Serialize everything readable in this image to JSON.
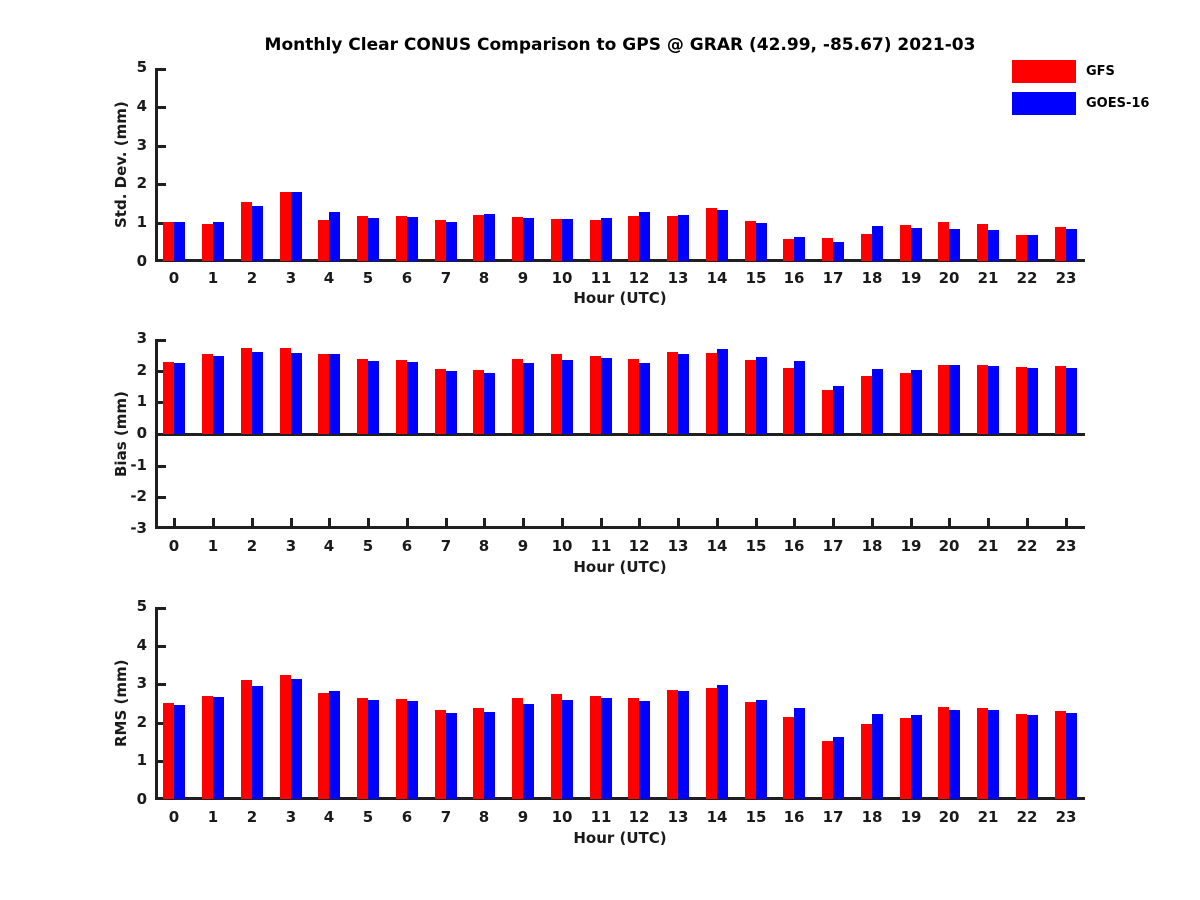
{
  "title": "Monthly Clear CONUS Comparison to GPS @ GRAR (42.99, -85.67) 2021-03",
  "legend": {
    "position": "top-right",
    "items": [
      {
        "label": "GFS",
        "color": "#ff0000"
      },
      {
        "label": "GOES-16",
        "color": "#0000ff"
      }
    ]
  },
  "colors": {
    "gfs": "#ff0000",
    "goes16": "#0000ff",
    "axis": "#1f1f1f",
    "background": "#ffffff"
  },
  "chart_data": [
    {
      "type": "bar",
      "title": "",
      "xlabel": "Hour (UTC)",
      "ylabel": "Std. Dev. (mm)",
      "ylim": [
        0,
        5
      ],
      "yticks": [
        0,
        1,
        2,
        3,
        4,
        5
      ],
      "grid": false,
      "categories": [
        0,
        1,
        2,
        3,
        4,
        5,
        6,
        7,
        8,
        9,
        10,
        11,
        12,
        13,
        14,
        15,
        16,
        17,
        18,
        19,
        20,
        21,
        22,
        23
      ],
      "series": [
        {
          "name": "GFS",
          "color": "#ff0000",
          "values": [
            1.01,
            0.96,
            1.51,
            1.77,
            1.06,
            1.17,
            1.17,
            1.05,
            1.19,
            1.13,
            1.08,
            1.05,
            1.17,
            1.15,
            1.37,
            1.04,
            0.56,
            0.58,
            0.7,
            0.92,
            1.01,
            0.95,
            0.67,
            0.88
          ]
        },
        {
          "name": "GOES-16",
          "color": "#0000ff",
          "values": [
            1.0,
            1.0,
            1.41,
            1.77,
            1.26,
            1.11,
            1.13,
            1.01,
            1.2,
            1.1,
            1.07,
            1.12,
            1.25,
            1.18,
            1.31,
            0.97,
            0.61,
            0.5,
            0.91,
            0.84,
            0.83,
            0.8,
            0.66,
            0.82
          ]
        }
      ]
    },
    {
      "type": "bar",
      "title": "",
      "xlabel": "Hour (UTC)",
      "ylabel": "Bias (mm)",
      "ylim": [
        -3,
        3
      ],
      "yticks": [
        -3,
        -2,
        -1,
        0,
        1,
        2,
        3
      ],
      "grid": false,
      "categories": [
        0,
        1,
        2,
        3,
        4,
        5,
        6,
        7,
        8,
        9,
        10,
        11,
        12,
        13,
        14,
        15,
        16,
        17,
        18,
        19,
        20,
        21,
        22,
        23
      ],
      "series": [
        {
          "name": "GFS",
          "color": "#ff0000",
          "values": [
            2.28,
            2.52,
            2.71,
            2.71,
            2.52,
            2.37,
            2.33,
            2.06,
            2.03,
            2.36,
            2.52,
            2.46,
            2.36,
            2.6,
            2.57,
            2.33,
            2.07,
            1.39,
            1.84,
            1.93,
            2.17,
            2.19,
            2.1,
            2.16
          ]
        },
        {
          "name": "GOES-16",
          "color": "#0000ff",
          "values": [
            2.24,
            2.46,
            2.6,
            2.56,
            2.53,
            2.3,
            2.27,
            2.0,
            1.93,
            2.25,
            2.33,
            2.41,
            2.25,
            2.54,
            2.69,
            2.42,
            2.32,
            1.53,
            2.04,
            2.03,
            2.17,
            2.14,
            2.07,
            2.07
          ]
        }
      ]
    },
    {
      "type": "bar",
      "title": "",
      "xlabel": "Hour (UTC)",
      "ylabel": "RMS (mm)",
      "ylim": [
        0,
        5
      ],
      "yticks": [
        0,
        1,
        2,
        3,
        4,
        5
      ],
      "grid": false,
      "categories": [
        0,
        1,
        2,
        3,
        4,
        5,
        6,
        7,
        8,
        9,
        10,
        11,
        12,
        13,
        14,
        15,
        16,
        17,
        18,
        19,
        20,
        21,
        22,
        23
      ],
      "series": [
        {
          "name": "GFS",
          "color": "#ff0000",
          "values": [
            2.48,
            2.68,
            3.09,
            3.21,
            2.74,
            2.62,
            2.59,
            2.31,
            2.36,
            2.61,
            2.72,
            2.67,
            2.62,
            2.82,
            2.88,
            2.52,
            2.12,
            1.49,
            1.94,
            2.1,
            2.38,
            2.36,
            2.2,
            2.28
          ]
        },
        {
          "name": "GOES-16",
          "color": "#0000ff",
          "values": [
            2.44,
            2.65,
            2.94,
            3.11,
            2.8,
            2.57,
            2.54,
            2.24,
            2.26,
            2.46,
            2.57,
            2.62,
            2.55,
            2.79,
            2.96,
            2.57,
            2.36,
            1.61,
            2.2,
            2.17,
            2.3,
            2.31,
            2.18,
            2.23
          ]
        }
      ]
    }
  ]
}
